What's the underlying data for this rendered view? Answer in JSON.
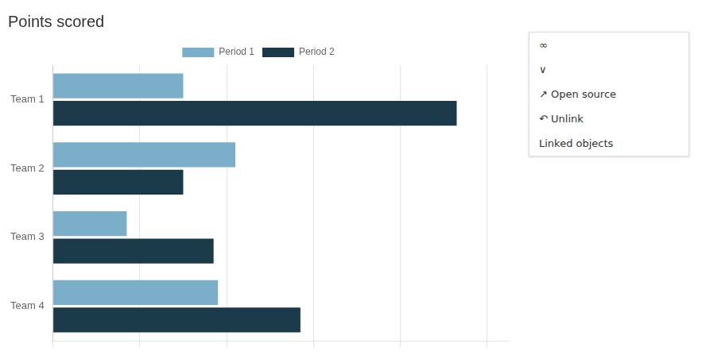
{
  "chart_data": {
    "type": "bar",
    "orientation": "horizontal",
    "title": "Points scored",
    "categories": [
      "Team 1",
      "Team 2",
      "Team 3",
      "Team 4"
    ],
    "series": [
      {
        "name": "Period 1",
        "color": "#7baec8",
        "values": [
          30,
          42,
          17,
          38
        ]
      },
      {
        "name": "Period 2",
        "color": "#1a3a4a",
        "values": [
          93,
          30,
          37,
          57
        ]
      }
    ],
    "xlim": [
      0,
      105
    ],
    "xticks": [
      0,
      20,
      40,
      60,
      80,
      100
    ],
    "grid": true,
    "legend": "top",
    "tick_labels": "y",
    "annotations": [
      "∞",
      "∨",
      "↗ Open source",
      "↶ Unlink",
      "Linked objects"
    ]
  }
}
